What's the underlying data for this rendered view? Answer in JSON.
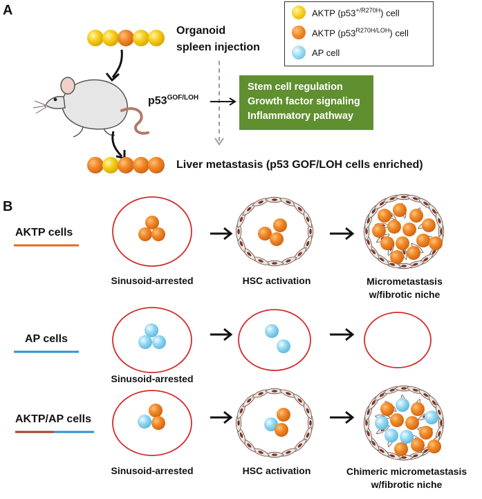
{
  "panel_a": {
    "label": "A",
    "injection_title_line1": "Organoid",
    "injection_title_line2": "spleen injection",
    "genotype_main": "p53",
    "genotype_sup": "GOF/LOH",
    "pathways": [
      "Stem cell regulation",
      "Growth factor signaling",
      "Inflammatory pathway"
    ],
    "outcome": "Liver metastasis (p53 GOF/LOH cells enriched)"
  },
  "legend": {
    "items": [
      {
        "text_main": "AKTP (p53",
        "text_sup": "+/R270H",
        "text_end": ") cell",
        "color": "#f5c518"
      },
      {
        "text_main": "AKTP (p53",
        "text_sup": "R270H/LOH",
        "text_end": ") cell",
        "color": "#ef7d22"
      },
      {
        "text_main": "AP cell",
        "text_sup": "",
        "text_end": "",
        "color": "#7fd0ec"
      }
    ]
  },
  "panel_b": {
    "label": "B",
    "rows": [
      {
        "name": "AKTP cells",
        "line_colors": [
          "#e06b1f",
          "#e06b1f"
        ],
        "stages": [
          "Sinusoid-arrested",
          "HSC activation",
          "Micrometastasis\nw/fibrotic niche"
        ]
      },
      {
        "name": "AP cells",
        "line_colors": [
          "#2a90d0",
          "#2a90d0"
        ],
        "stages": [
          "Sinusoid-arrested",
          "",
          ""
        ]
      },
      {
        "name": "AKTP/AP cells",
        "line_colors": [
          "#a0402a",
          "#2a90d0"
        ],
        "stages": [
          "Sinusoid-arrested",
          "HSC activation",
          "Chimeric micrometastasis\nw/fibrotic niche"
        ]
      }
    ]
  },
  "colors": {
    "yellow_cell": "#f5c518",
    "orange_cell": "#ef7d22",
    "blue_cell": "#7fd0ec",
    "sinusoid_outline": "#d42a2a",
    "pathway_box": "#5f8f2f",
    "hsc_fill": "#eee6df",
    "hsc_nucleus": "#7a3326"
  }
}
